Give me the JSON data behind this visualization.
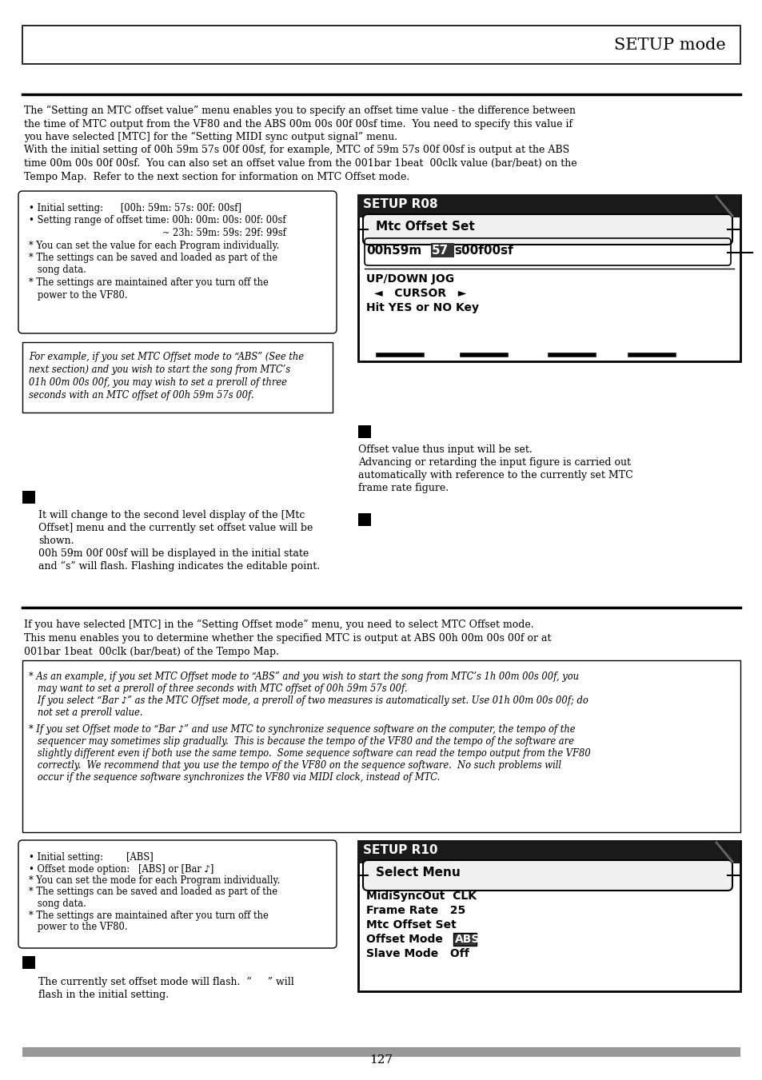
{
  "bg_color": "#ffffff",
  "header_text": "SETUP mode",
  "footer_text": "127",
  "para1_lines": [
    "The “Setting an MTC offset value” menu enables you to specify an offset time value - the difference between",
    "the time of MTC output from the VF80 and the ABS 00m 00s 00f 00sf time.  You need to specify this value if",
    "you have selected [MTC] for the “Setting MIDI sync output signal” menu.",
    "With the initial setting of 00h 59m 57s 00f 00sf, for example, MTC of 59m 57s 00f 00sf is output at the ABS",
    "time 00m 00s 00f 00sf.  You can also set an offset value from the 001bar 1beat  00clk value (bar/beat) on the",
    "Tempo Map.  Refer to the next section for information on MTC Offset mode."
  ],
  "box1_lines": [
    "• Initial setting:      [00h: 59m: 57s: 00f: 00sf]",
    "• Setting range of offset time: 00h: 00m: 00s: 00f: 00sf",
    "                                              ~ 23h: 59m: 59s: 29f: 99sf",
    "* You can set the value for each Program individually.",
    "* The settings can be saved and loaded as part of the",
    "   song data.",
    "* The settings are maintained after you turn off the",
    "   power to the VF80."
  ],
  "box2_lines": [
    "For example, if you set MTC Offset mode to “ABS” (See the",
    "next section) and you wish to start the song from MTC’s",
    "01h 00m 00s 00f, you may wish to set a preroll of three",
    "seconds with an MTC offset of 00h 59m 57s 00f."
  ],
  "step1r_lines": [
    "Offset value thus input will be set.",
    "Advancing or retarding the input figure is carried out",
    "automatically with reference to the currently set MTC",
    "frame rate figure."
  ],
  "step2l_lines": [
    "It will change to the second level display of the [Mtc",
    "Offset] menu and the currently set offset value will be",
    "shown.",
    "00h 59m 00f 00sf will be displayed in the initial state",
    "and “s” will flash. Flashing indicates the editable point."
  ],
  "para2_lines": [
    "If you have selected [MTC] in the “Setting Offset mode” menu, you need to select MTC Offset mode.",
    "This menu enables you to determine whether the specified MTC is output at ABS 00h 00m 00s 00f or at",
    "001bar 1beat  00clk (bar/beat) of the Tempo Map."
  ],
  "ibox_lines1": [
    "* As an example, if you set MTC Offset mode to “ABS” and you wish to start the song from MTC’s 1h 00m 00s 00f, you",
    "   may want to set a preroll of three seconds with MTC offset of 00h 59m 57s 00f.",
    "   If you select “Bar ♪” as the MTC Offset mode, a preroll of two measures is automatically set. Use 01h 00m 00s 00f; do",
    "   not set a preroll value."
  ],
  "ibox_lines2": [
    "* If you set Offset mode to “Bar ♪” and use MTC to synchronize sequence software on the computer, the tempo of the",
    "   sequencer may sometimes slip gradually.  This is because the tempo of the VF80 and the tempo of the software are",
    "   slightly different even if both use the same tempo.  Some sequence software can read the tempo output from the VF80",
    "   correctly.  We recommend that you use the tempo of the VF80 on the sequence software.  No such problems will",
    "   occur if the sequence software synchronizes the VF80 via MIDI clock, instead of MTC."
  ],
  "box3_lines": [
    "• Initial setting:        [ABS]",
    "• Offset mode option:   [ABS] or [Bar ♪]",
    "* You can set the mode for each Program individually.",
    "* The settings can be saved and loaded as part of the",
    "   song data.",
    "* The settings are maintained after you turn off the",
    "   power to the VF80."
  ],
  "step3l_lines": [
    "The currently set offset mode will flash.  “     ” will",
    "flash in the initial setting."
  ]
}
